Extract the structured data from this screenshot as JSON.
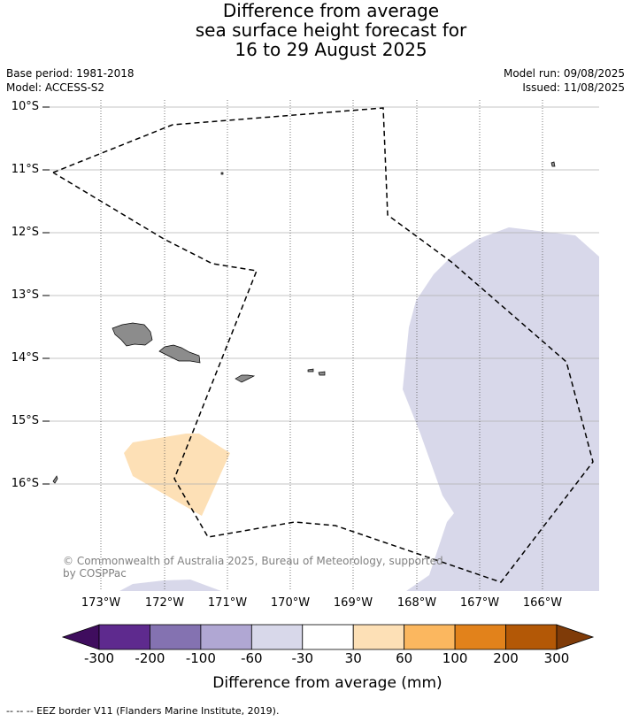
{
  "header": {
    "title_lines": [
      "Difference from average",
      "sea surface height forecast for",
      "16 to 29 August 2025"
    ],
    "base_period": "Base period: 1981-2018",
    "model": "Model: ACCESS-S2",
    "model_run": "Model run: 09/08/2025",
    "issued": "Issued: 11/08/2025"
  },
  "map": {
    "lat_labels": [
      "10°S",
      "11°S",
      "12°S",
      "13°S",
      "14°S",
      "15°S",
      "16°S"
    ],
    "lon_labels": [
      "173°W",
      "172°W",
      "171°W",
      "170°W",
      "169°W",
      "168°W",
      "167°W",
      "166°W"
    ],
    "copyright": "© Commonwealth of Australia 2025, Bureau of Meteorology, supported by COSPPac",
    "land_color": "#8c8c8c",
    "anomaly_fills": [
      {
        "range": "-60 to -30",
        "color": "#d8d8ea"
      },
      {
        "range": "30 to 60",
        "color": "#fde0b6"
      }
    ]
  },
  "colorbar": {
    "label": "Difference from average (mm)",
    "ticks": [
      "-300",
      "-200",
      "-100",
      "-60",
      "-30",
      "30",
      "60",
      "100",
      "200",
      "300"
    ],
    "colors": [
      "#3f0d5e",
      "#5e2a8e",
      "#8472b1",
      "#b0a7d3",
      "#d8d8ea",
      "#ffffff",
      "#fde0b6",
      "#fbb75f",
      "#e2821b",
      "#b35806",
      "#7f3b08"
    ]
  },
  "footnote": "--  --  -- EEZ border V11 (Flanders Marine Institute, 2019)."
}
